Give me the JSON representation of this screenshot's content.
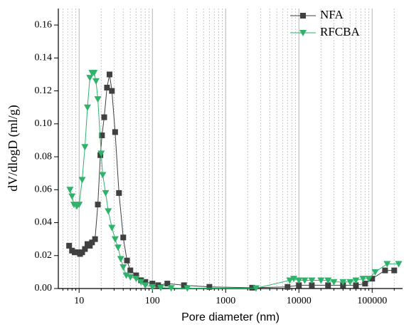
{
  "chart_data": {
    "type": "scatter-line",
    "x_label": "Pore diameter (nm)",
    "y_label": "dV/dlogD (ml/g)",
    "xscale": "log",
    "xlim": [
      5.2,
      260000
    ],
    "xticks": [
      10,
      100,
      1000,
      10000,
      100000
    ],
    "ylim": [
      0,
      0.17
    ],
    "yticks": [
      {
        "value": 0,
        "label": "0.00"
      },
      0.02,
      0.04,
      0.06,
      0.08,
      {
        "value": 0.1,
        "label": "0.10"
      },
      0.12,
      0.14,
      0.16
    ],
    "grid": true,
    "minor_grid": true,
    "legend": "upper right",
    "series": [
      {
        "name": "NFA",
        "color": "#404040",
        "marker": "square",
        "x": [
          7.3,
          8,
          8.7,
          9.5,
          10.3,
          11,
          12,
          13,
          14,
          15,
          16.5,
          18,
          19.5,
          20.5,
          22,
          24,
          26,
          28,
          31,
          35,
          40,
          45,
          50,
          60,
          70,
          80,
          100,
          120,
          160,
          270,
          600,
          2300,
          7000,
          10000,
          15000,
          25000,
          40000,
          60000,
          80000,
          100000,
          150000,
          200000
        ],
        "values": [
          0.026,
          0.023,
          0.022,
          0.022,
          0.021,
          0.022,
          0.024,
          0.027,
          0.026,
          0.028,
          0.03,
          0.051,
          0.081,
          0.093,
          0.104,
          0.122,
          0.13,
          0.12,
          0.095,
          0.058,
          0.031,
          0.017,
          0.011,
          0.008,
          0.005,
          0.004,
          0.003,
          0.002,
          0.003,
          0.002,
          0.001,
          0.0005,
          0.001,
          0.002,
          0.002,
          0.002,
          0.002,
          0.002,
          0.003,
          0.006,
          0.011,
          0.011
        ]
      },
      {
        "name": "RFCBA",
        "color": "#2fb36b",
        "marker": "triangle-down",
        "x": [
          7.5,
          8,
          8.5,
          9.3,
          10,
          11,
          12,
          13,
          14,
          15,
          16,
          17,
          18,
          20,
          21,
          23,
          25,
          28,
          31,
          34,
          37,
          40,
          44,
          50,
          60,
          70,
          80,
          100,
          130,
          180,
          300,
          2600,
          7500,
          8500,
          10000,
          12000,
          15000,
          20000,
          25000,
          30000,
          40000,
          50000,
          60000,
          75000,
          90000,
          110000,
          160000,
          230000
        ],
        "values": [
          0.06,
          0.056,
          0.051,
          0.05,
          0.051,
          0.066,
          0.086,
          0.11,
          0.128,
          0.131,
          0.131,
          0.126,
          0.115,
          0.082,
          0.069,
          0.058,
          0.047,
          0.037,
          0.03,
          0.025,
          0.018,
          0.013,
          0.008,
          0.007,
          0.006,
          0.004,
          0.002,
          0.001,
          0.0005,
          0.0003,
          0.0002,
          0.0002,
          0.005,
          0.006,
          0.005,
          0.005,
          0.005,
          0.005,
          0.005,
          0.004,
          0.004,
          0.004,
          0.005,
          0.006,
          0.006,
          0.01,
          0.015,
          0.015
        ]
      }
    ]
  }
}
